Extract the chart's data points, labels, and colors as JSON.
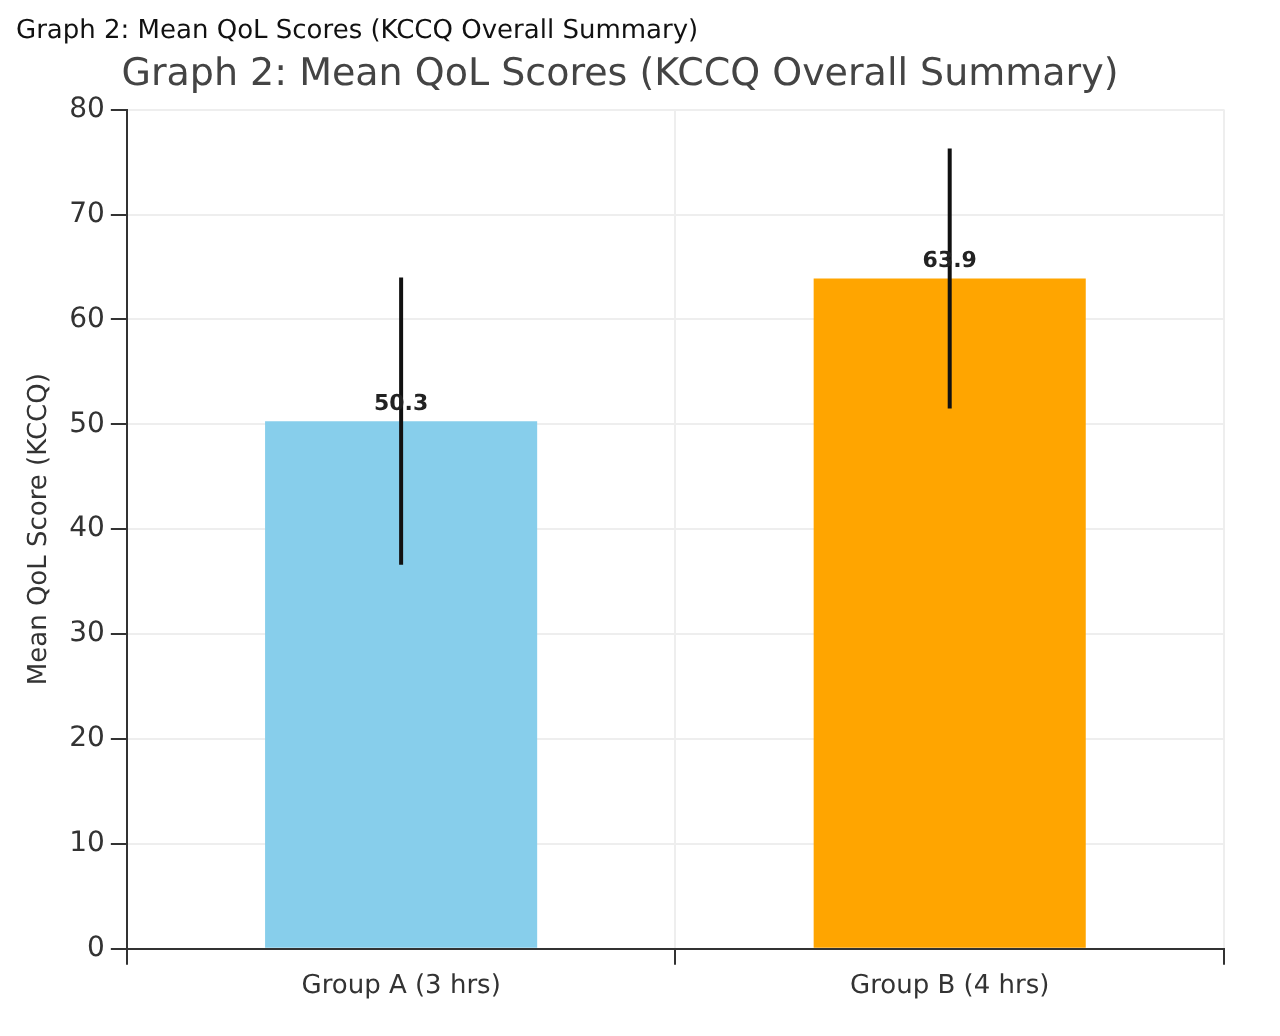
{
  "chart_data": {
    "type": "bar",
    "title": "Graph 2: Mean QoL Scores (KCCQ Overall Summary)",
    "annotations": [
      "Graph 2: Mean QoL Scores (KCCQ Overall Summary)"
    ],
    "ylabel": "Mean QoL Score (KCCQ)",
    "categories": [
      "Group A (3 hrs)",
      "Group B (4 hrs)"
    ],
    "values": [
      50.3,
      63.9
    ],
    "colors": [
      "#87ceeb",
      "#ffa500"
    ],
    "errors": [
      13.7,
      12.4
    ],
    "data_labels": true,
    "ylim": [
      0,
      80
    ],
    "yticks": [
      0,
      10,
      20,
      30,
      40,
      50,
      60,
      70,
      80
    ],
    "grid": true,
    "legend": false
  }
}
